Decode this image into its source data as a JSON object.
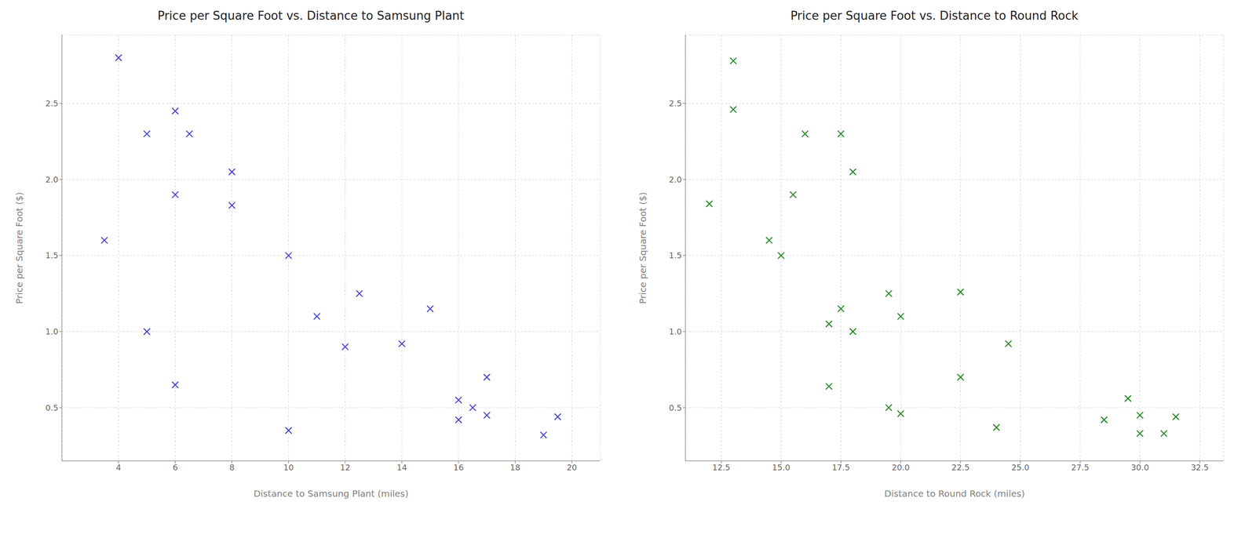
{
  "chart_data": [
    {
      "type": "scatter",
      "title": "Price per Square Foot vs. Distance to Samsung Plant",
      "xlabel": "Distance to Samsung Plant (miles)",
      "ylabel": "Price per Square Foot ($)",
      "x": [
        3.5,
        4.0,
        5.0,
        5.0,
        6.0,
        6.0,
        6.0,
        6.5,
        8.0,
        8.0,
        10.0,
        10.0,
        11.0,
        12.0,
        12.5,
        14.0,
        15.0,
        16.0,
        16.0,
        16.5,
        17.0,
        17.0,
        19.0,
        19.5
      ],
      "values": [
        1.6,
        2.8,
        1.0,
        2.3,
        0.65,
        1.9,
        2.45,
        2.3,
        2.05,
        1.83,
        0.35,
        1.5,
        1.1,
        0.9,
        1.25,
        0.92,
        1.15,
        0.42,
        0.55,
        0.5,
        0.45,
        0.7,
        0.32,
        0.44
      ],
      "color": "#4444cc",
      "marker": "x",
      "xlim": [
        2.0,
        21.0
      ],
      "ylim": [
        0.15,
        2.95
      ],
      "xticks": [
        4,
        6,
        8,
        10,
        12,
        14,
        16,
        18,
        20
      ],
      "yticks": [
        0.5,
        {
          "value": 1,
          "label": "1.0"
        },
        1.5,
        {
          "value": 2,
          "label": "2.0"
        },
        2.5
      ],
      "grid": true
    },
    {
      "type": "scatter",
      "title": "Price per Square Foot vs. Distance to Round Rock",
      "xlabel": "Distance to Round Rock (miles)",
      "ylabel": "Price per Square Foot ($)",
      "x": [
        12.0,
        13.0,
        13.0,
        14.5,
        15.0,
        15.5,
        16.0,
        17.0,
        17.0,
        17.5,
        17.5,
        18.0,
        18.0,
        19.5,
        19.5,
        20.0,
        20.0,
        22.5,
        22.5,
        24.0,
        24.5,
        28.5,
        29.5,
        30.0,
        30.0,
        31.0,
        31.5
      ],
      "values": [
        1.84,
        2.78,
        2.46,
        1.6,
        1.5,
        1.9,
        2.3,
        0.64,
        1.05,
        2.3,
        1.15,
        2.05,
        1.0,
        0.5,
        1.25,
        1.1,
        0.46,
        0.7,
        1.26,
        0.37,
        0.92,
        0.42,
        0.56,
        0.45,
        0.33,
        0.33,
        0.44
      ],
      "color": "#228822",
      "marker": "x",
      "xlim": [
        11.0,
        33.5
      ],
      "ylim": [
        0.15,
        2.95
      ],
      "xticks": [
        12.5,
        {
          "value": 15,
          "label": "15.0"
        },
        17.5,
        {
          "value": 20,
          "label": "20.0"
        },
        22.5,
        {
          "value": 25,
          "label": "25.0"
        },
        27.5,
        {
          "value": 30,
          "label": "30.0"
        },
        32.5
      ],
      "yticks": [
        0.5,
        {
          "value": 1,
          "label": "1.0"
        },
        1.5,
        {
          "value": 2,
          "label": "2.0"
        },
        2.5
      ],
      "grid": true
    }
  ]
}
